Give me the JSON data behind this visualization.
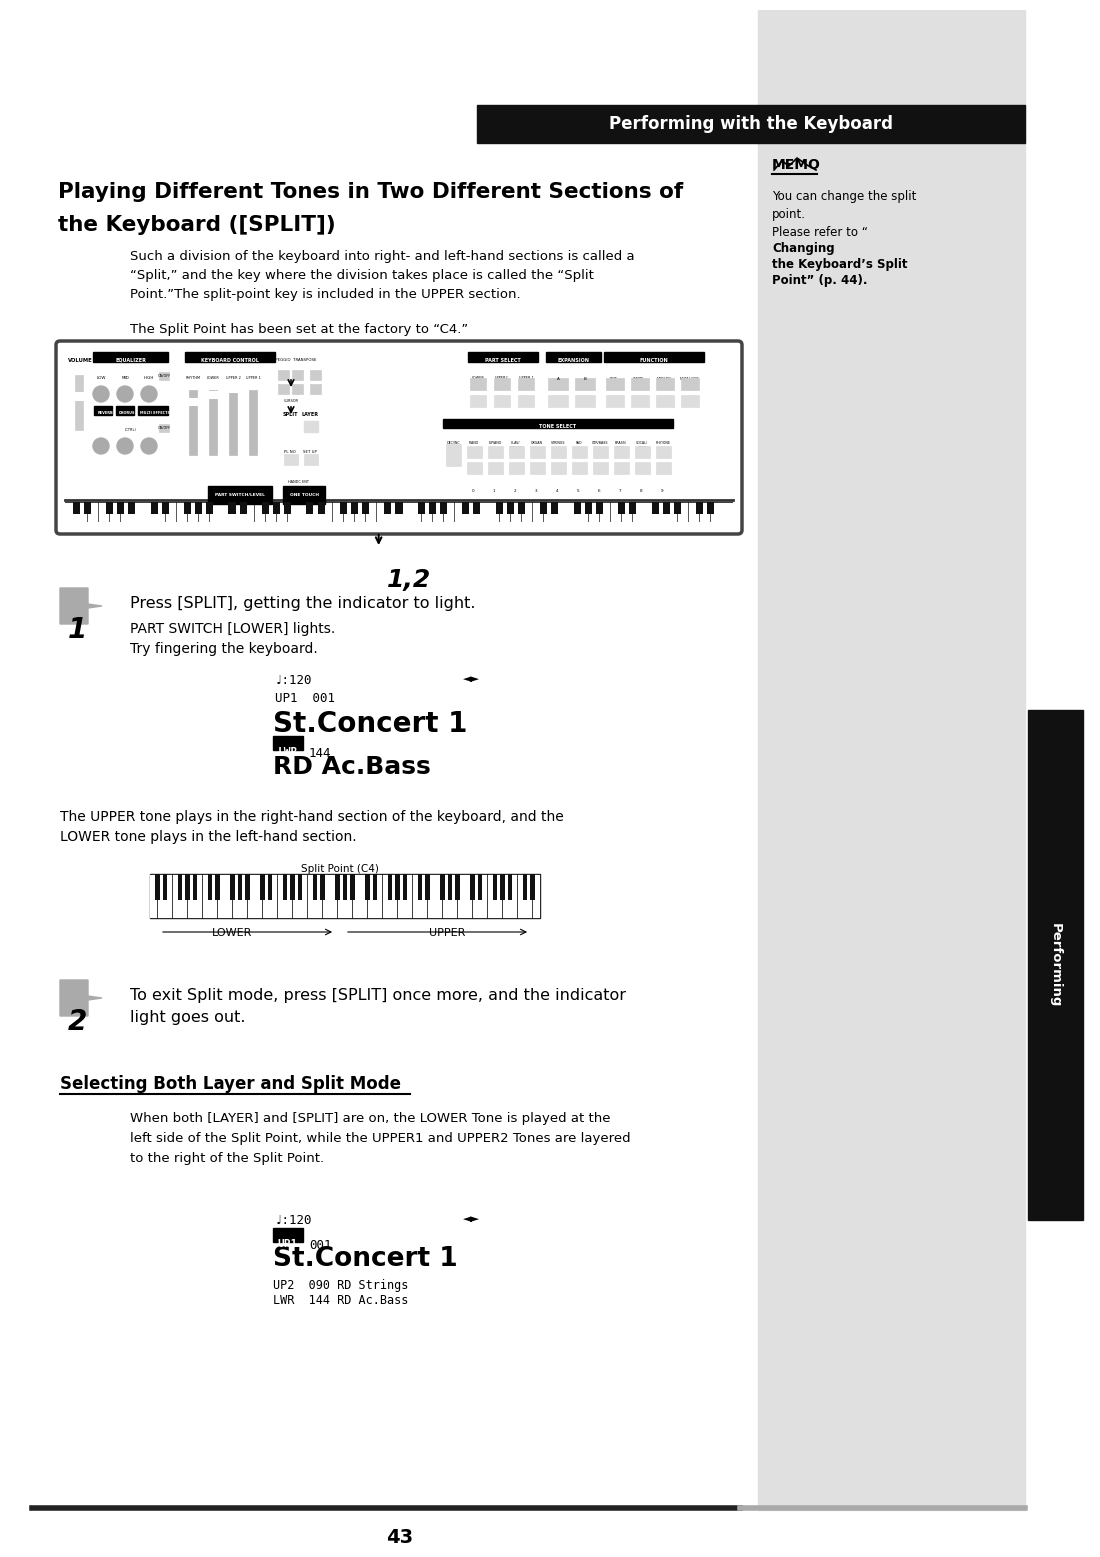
{
  "page_bg": "#ffffff",
  "sidebar_color": "#e0e0e0",
  "sidebar_dark": "#111111",
  "header_text": "Performing with the Keyboard",
  "title_line1": "Playing Different Tones in Two Different Sections of",
  "title_line2": "the Keyboard ([SPLIT])",
  "memo_title": "MEMO",
  "memo_line1": "You can change the split",
  "memo_line2": "point.",
  "memo_line3_normal": "Please refer to “",
  "memo_line3_bold": "Changing",
  "memo_line4_bold": "the Keyboard’s Split",
  "memo_line5_bold": "Point",
  "memo_line5_normal": "” (p. 44).",
  "para1": "Such a division of the keyboard into right- and left-hand sections is called a",
  "para2": "“Split,” and the key where the division takes place is called the “Split",
  "para3": "Point.”The split-point key is included in the UPPER section.",
  "para4": "The Split Point has been set at the factory to “C4.”",
  "step1_text1": "Press [SPLIT], getting the indicator to light.",
  "step1_text2": "PART SWITCH [LOWER] lights.",
  "step1_text3": "Try fingering the keyboard.",
  "display1_line1": "♩:120",
  "display1_indicator": "◄►",
  "display1_line2": "UP1  001",
  "display1_line3": "St.Concert 1",
  "display1_lwr": "LWR",
  "display1_lwr_num": "144",
  "display1_line5": "RD Ac.Bass",
  "upper_lower_text1": "The UPPER tone plays in the right-hand section of the keyboard, and the",
  "upper_lower_text2": "LOWER tone plays in the left-hand section.",
  "split_point_label": "Split Point (C4)",
  "lower_label": "LOWER",
  "upper_label": "UPPER",
  "step2_text1": "To exit Split mode, press [SPLIT] once more, and the indicator",
  "step2_text2": "light goes out.",
  "section_title": "Selecting Both Layer and Split Mode",
  "section_para1": "When both [LAYER] and [SPLIT] are on, the LOWER Tone is played at the",
  "section_para2": "left side of the Split Point, while the UPPER1 and UPPER2 Tones are layered",
  "section_para3": "to the right of the Split Point.",
  "display2_line1": "♩:120",
  "display2_indicator": "◄►",
  "display2_up1": "UP1",
  "display2_up1_num": "001",
  "display2_line3": "St.Concert 1",
  "display2_line4": "UP2  090 RD Strings",
  "display2_line5": "LWR  144 RD Ac.Bass",
  "page_number": "43",
  "performing_label": "Performing",
  "label_12": "1,2"
}
